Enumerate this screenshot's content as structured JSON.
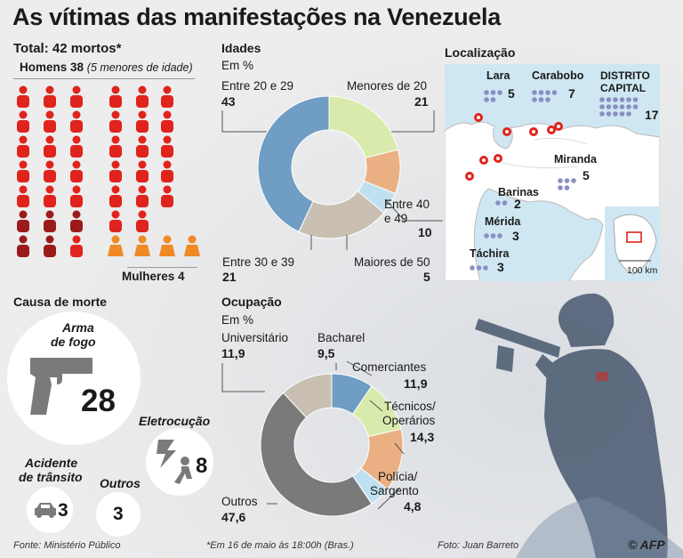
{
  "title": "As vítimas das manifestações na Venezuela",
  "total": {
    "label": "Total: 42 mortos*",
    "men_label": "Homens 38",
    "men_note": "(5 menores de idade)",
    "women_label": "Mulheres 4",
    "men": 38,
    "men_minors": 5,
    "women": 4
  },
  "colors": {
    "adult_man": "#e0231c",
    "minor": "#9b1b1b",
    "woman": "#f08a24",
    "pin": "#e0231c"
  },
  "ages": {
    "heading": "Idades",
    "unit": "Em %",
    "labels": {
      "entre20": "Entre 20 e 29",
      "entre20_v": "43",
      "menores": "Menores de 20",
      "menores_v": "21",
      "entre40a": "Entre 40",
      "entre40b": "e 49",
      "entre40_v": "10",
      "maiores": "Maiores de 50",
      "maiores_v": "5",
      "entre30": "Entre 30 e 39",
      "entre30_v": "21"
    }
  },
  "occupation": {
    "heading": "Ocupação",
    "unit": "Em %",
    "labels": {
      "univ": "Universitário",
      "univ_v": "11,9",
      "bach": "Bacharel",
      "bach_v": "9,5",
      "com": "Comerciantes",
      "com_v": "11,9",
      "tec1": "Técnicos/",
      "tec2": "Operários",
      "tec_v": "14,3",
      "pol1": "Polícia/",
      "pol2": "Sargento",
      "pol_v": "4,8",
      "out": "Outros",
      "out_v": "47,6"
    }
  },
  "cause": {
    "heading": "Causa de morte",
    "gun1": "Arma",
    "gun2": "de fogo",
    "gun_v": "28",
    "elec": "Eletrocução",
    "elec_v": "8",
    "acc1": "Acidente",
    "acc2": "de trânsito",
    "acc_v": "3",
    "other": "Outros",
    "other_v": "3"
  },
  "location": {
    "heading": "Localização",
    "lara": "Lara",
    "lara_v": "5",
    "carabobo": "Carabobo",
    "carabobo_v": "7",
    "dc1": "DISTRITO",
    "dc2": "CAPITAL",
    "dc_v": "17",
    "miranda": "Miranda",
    "miranda_v": "5",
    "barinas": "Barinas",
    "barinas_v": "2",
    "merida": "Mérida",
    "merida_v": "3",
    "tachira": "Táchira",
    "tachira_v": "3",
    "scale": "100 km"
  },
  "footer": {
    "source": "Fonte: Ministério Público",
    "note": "*Em 16 de maio às 18:00h (Bras.)",
    "photo": "Foto: Juan Barreto",
    "credit": "© AFP"
  },
  "chart_data": [
    {
      "type": "pie",
      "title": "Idades",
      "unit": "Em %",
      "categories": [
        "Menores de 20",
        "Entre 40 e 49",
        "Maiores de 50",
        "Entre 30 e 39",
        "Entre 20 e 29"
      ],
      "values": [
        21,
        10,
        5,
        21,
        43
      ],
      "colors": [
        "#d8ebad",
        "#eab083",
        "#bfe0f0",
        "#c8bfb2",
        "#6f9dc3"
      ]
    },
    {
      "type": "pie",
      "title": "Ocupação",
      "unit": "Em %",
      "categories": [
        "Bacharel",
        "Comerciantes",
        "Técnicos/Operários",
        "Polícia/Sargento",
        "Outros",
        "Universitário"
      ],
      "values": [
        9.5,
        11.9,
        14.3,
        4.8,
        47.6,
        11.9
      ],
      "colors": [
        "#6f9dc3",
        "#d8ebad",
        "#eab083",
        "#bfe0f0",
        "#7a7a7a",
        "#c8bfb2"
      ]
    },
    {
      "type": "bar",
      "title": "Causa de morte",
      "categories": [
        "Arma de fogo",
        "Eletrocução",
        "Acidente de trânsito",
        "Outros"
      ],
      "values": [
        28,
        8,
        3,
        3
      ]
    },
    {
      "type": "table",
      "title": "Localização",
      "categories": [
        "Lara",
        "Carabobo",
        "Distrito Capital",
        "Miranda",
        "Barinas",
        "Mérida",
        "Táchira"
      ],
      "values": [
        5,
        7,
        17,
        5,
        2,
        3,
        3
      ]
    }
  ]
}
